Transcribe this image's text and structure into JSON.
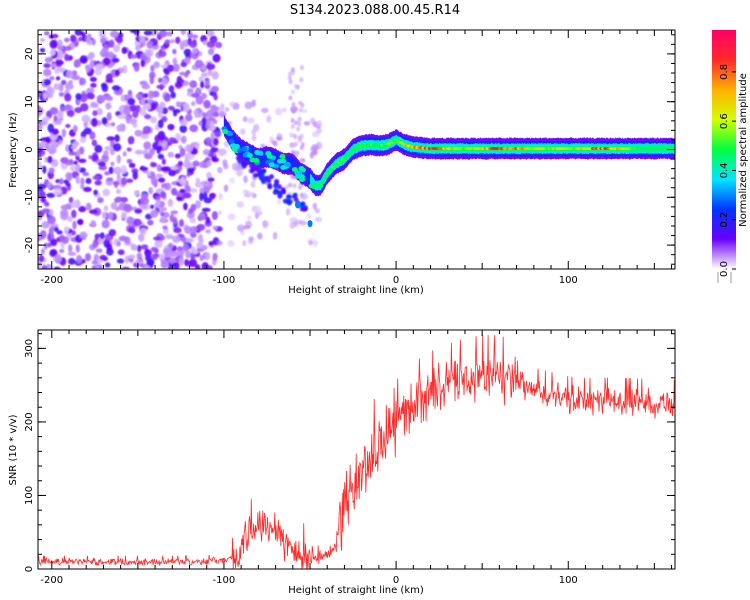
{
  "title": "S134.2023.088.00.45.R14",
  "chart_data": [
    {
      "type": "heatmap",
      "xlabel": "Height of straight line (km)",
      "ylabel": "Frequency (Hz)",
      "xlim": [
        -208,
        162
      ],
      "ylim": [
        -25,
        25
      ],
      "xticks": [
        -200,
        -100,
        0,
        100
      ],
      "xtick_labels": [
        "-200",
        "-100",
        "0",
        "100"
      ],
      "yticks": [
        -20,
        -10,
        0,
        10,
        20
      ],
      "ytick_labels": [
        "-20",
        "-10",
        "0",
        "10",
        "20"
      ],
      "colorbar": {
        "label": "Normalized spectral amplitude",
        "range": [
          0,
          0.97
        ],
        "ticks": [
          0.0,
          0.2,
          0.4,
          0.6,
          0.8
        ],
        "tick_labels": [
          "0.0",
          "0.2",
          "0.4",
          "0.6",
          "0.8"
        ],
        "colors": [
          "#ffffff",
          "#6a00ff",
          "#0033ff",
          "#00e5ff",
          "#00ff40",
          "#d4ff00",
          "#ffb000",
          "#ff2a2a",
          "#ff0066"
        ]
      },
      "signal_track": {
        "x": [
          -100,
          -95,
          -90,
          -85,
          -80,
          -75,
          -70,
          -65,
          -60,
          -55,
          -50,
          -47,
          -44,
          -40,
          -35,
          -30,
          -25,
          -20,
          -15,
          -10,
          -5,
          0,
          5,
          10,
          20,
          40,
          60,
          80,
          100,
          120,
          140,
          160
        ],
        "freq": [
          5,
          2,
          0,
          -1,
          -2,
          -1.5,
          -2,
          -3,
          -3,
          -5,
          -6,
          -7.5,
          -7.5,
          -5,
          -3,
          -2,
          0,
          0.8,
          1,
          0.8,
          1,
          2,
          1,
          0.5,
          0.2,
          0.2,
          0.2,
          0.2,
          0.2,
          0.2,
          0.2,
          0.2
        ],
        "amplitude": [
          0.35,
          0.3,
          0.35,
          0.3,
          0.35,
          0.3,
          0.3,
          0.3,
          0.3,
          0.3,
          0.45,
          0.55,
          0.5,
          0.5,
          0.5,
          0.5,
          0.5,
          0.5,
          0.55,
          0.5,
          0.6,
          0.6,
          0.7,
          0.75,
          0.9,
          0.6,
          0.95,
          0.7,
          0.6,
          0.9,
          0.5,
          0.45
        ]
      }
    },
    {
      "type": "line",
      "xlabel": "Height of straight line (km)",
      "ylabel": "SNR (10 * v/v)",
      "xlim": [
        -208,
        162
      ],
      "ylim": [
        0,
        325
      ],
      "xticks": [
        -200,
        -100,
        0,
        100
      ],
      "xtick_labels": [
        "-200",
        "-100",
        "0",
        "100"
      ],
      "yticks": [
        0,
        100,
        200,
        300
      ],
      "ytick_labels": [
        "0",
        "100",
        "200",
        "300"
      ],
      "series": [
        {
          "color": "#ff2a2a",
          "x": [
            -208,
            -180,
            -150,
            -120,
            -100,
            -92,
            -88,
            -83,
            -80,
            -75,
            -70,
            -65,
            -60,
            -55,
            -50,
            -45,
            -40,
            -36,
            -33,
            -30,
            -25,
            -20,
            -15,
            -10,
            -5,
            0,
            5,
            10,
            20,
            30,
            40,
            50,
            60,
            70,
            80,
            90,
            100,
            110,
            120,
            130,
            140,
            150,
            162
          ],
          "y": [
            10,
            10,
            10,
            10,
            12,
            18,
            35,
            55,
            60,
            65,
            60,
            40,
            25,
            18,
            15,
            16,
            18,
            30,
            60,
            90,
            110,
            130,
            150,
            170,
            185,
            200,
            215,
            225,
            240,
            250,
            258,
            262,
            262,
            252,
            242,
            236,
            230,
            228,
            228,
            228,
            227,
            226,
            225
          ]
        }
      ]
    }
  ]
}
